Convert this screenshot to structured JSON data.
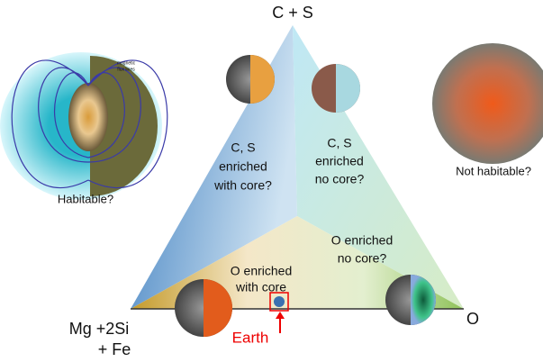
{
  "vertices": {
    "top": "C + S",
    "left": [
      "Mg +2Si",
      "+ Fe"
    ],
    "right": "O"
  },
  "regions": [
    {
      "lines": [
        "C, S",
        "enriched",
        "with core?"
      ]
    },
    {
      "lines": [
        "C, S",
        "enriched",
        "no core?"
      ]
    },
    {
      "lines": [
        "O enriched",
        "no core?"
      ]
    },
    {
      "lines": [
        "O enriched",
        "with core"
      ]
    }
  ],
  "left_planet": {
    "label": "Habitable?",
    "note": [
      "magnetic",
      "flux lines"
    ]
  },
  "right_planet": {
    "label": "Not habitable?"
  },
  "earth": {
    "label": "Earth"
  }
}
